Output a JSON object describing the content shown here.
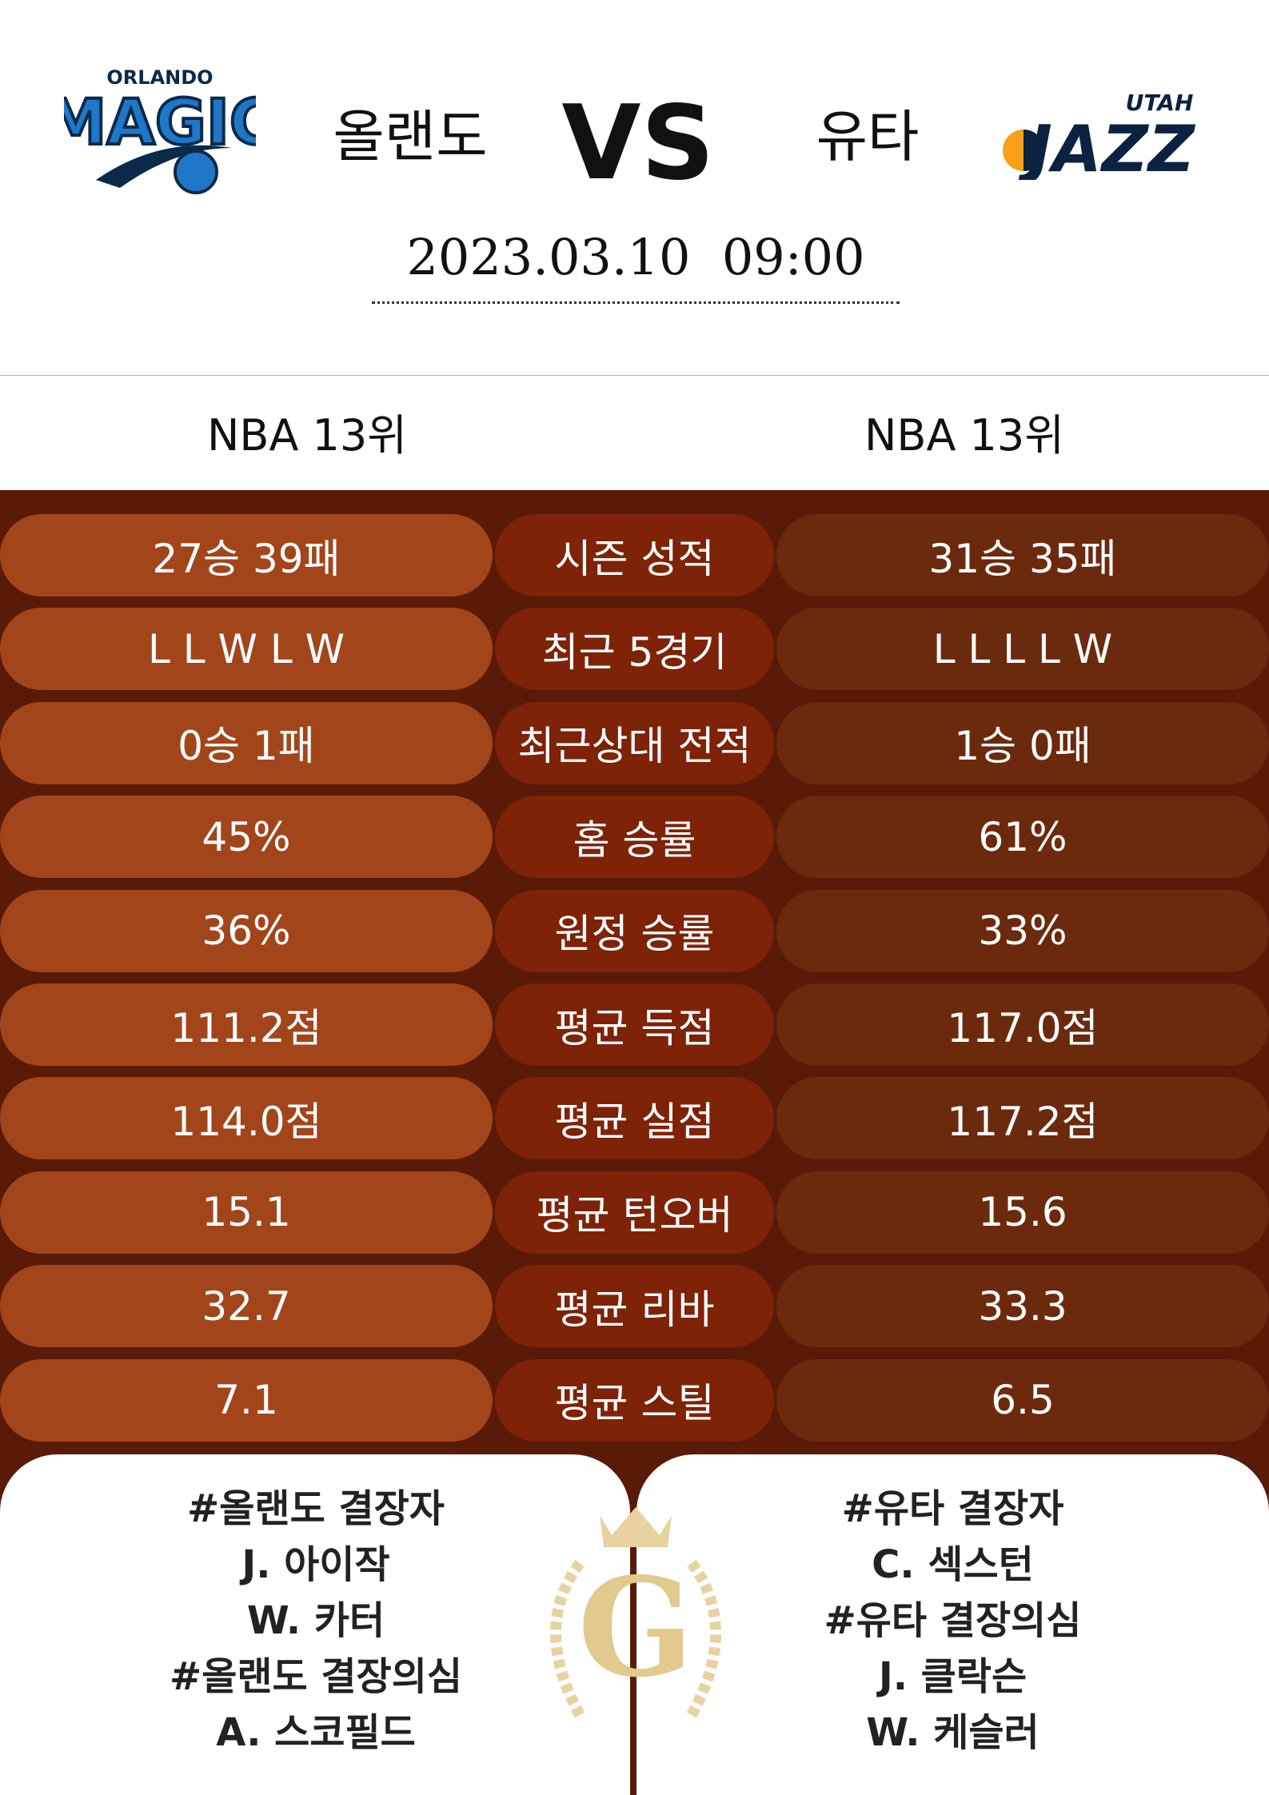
{
  "logos": {
    "home": [
      "ORLANDO",
      "MAGIC"
    ],
    "away": [
      "UTAH",
      "JAZZ"
    ]
  },
  "header": {
    "home": "올랜도",
    "vs": "VS",
    "away": "유타",
    "datetime": "2023.03.10  09:00"
  },
  "ranks": {
    "home": "NBA 13위",
    "away": "NBA 13위"
  },
  "stats": {
    "rows": [
      [
        "27승 39패",
        "시즌 성적",
        "31승 35패"
      ],
      [
        "L L W L W",
        "최근 5경기",
        "L L L L W"
      ],
      [
        "0승 1패",
        "최근상대 전적",
        "1승 0패"
      ],
      [
        "45%",
        "홈 승률",
        "61%"
      ],
      [
        "36%",
        "원정 승률",
        "33%"
      ],
      [
        "111.2점",
        "평균 득점",
        "117.0점"
      ],
      [
        "114.0점",
        "평균 실점",
        "117.2점"
      ],
      [
        "15.1",
        "평균 턴오버",
        "15.6"
      ],
      [
        "32.7",
        "평균 리바",
        "33.3"
      ],
      [
        "7.1",
        "평균 스틸",
        "6.5"
      ]
    ]
  },
  "injuries": {
    "home": [
      "#올랜도 결장자",
      "J. 아이작",
      "W. 카터",
      "#올랜도 결장의심",
      "A. 스코필드"
    ],
    "away": [
      "#유타 결장자",
      "C. 섹스턴",
      "#유타 결장의심",
      "J. 클락슨",
      "W. 케슬러"
    ]
  },
  "emblem": "G"
}
